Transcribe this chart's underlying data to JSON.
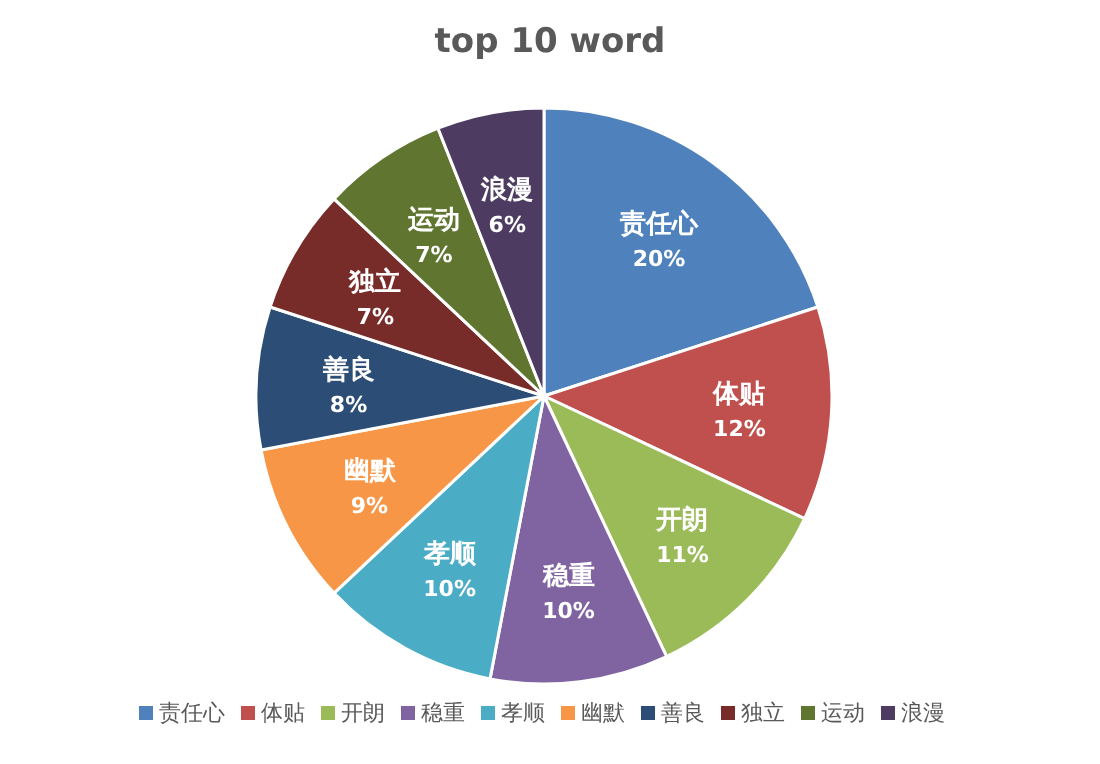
{
  "chart_data": {
    "type": "pie",
    "title": "top 10 word",
    "categories": [
      "责任心",
      "体贴",
      "开朗",
      "稳重",
      "孝顺",
      "幽默",
      "善良",
      "独立",
      "运动",
      "浪漫"
    ],
    "values": [
      20,
      12,
      11,
      10,
      10,
      9,
      8,
      7,
      7,
      6
    ],
    "colors": [
      "#4f81bd",
      "#c0504d",
      "#9bbb59",
      "#8064a2",
      "#4bacc6",
      "#f79646",
      "#2c4d75",
      "#772c2a",
      "#5f7530",
      "#4d3b62"
    ],
    "value_labels": [
      "20%",
      "12%",
      "11%",
      "10%",
      "10%",
      "9%",
      "8%",
      "7%",
      "7%",
      "6%"
    ],
    "legend": "bottom"
  }
}
